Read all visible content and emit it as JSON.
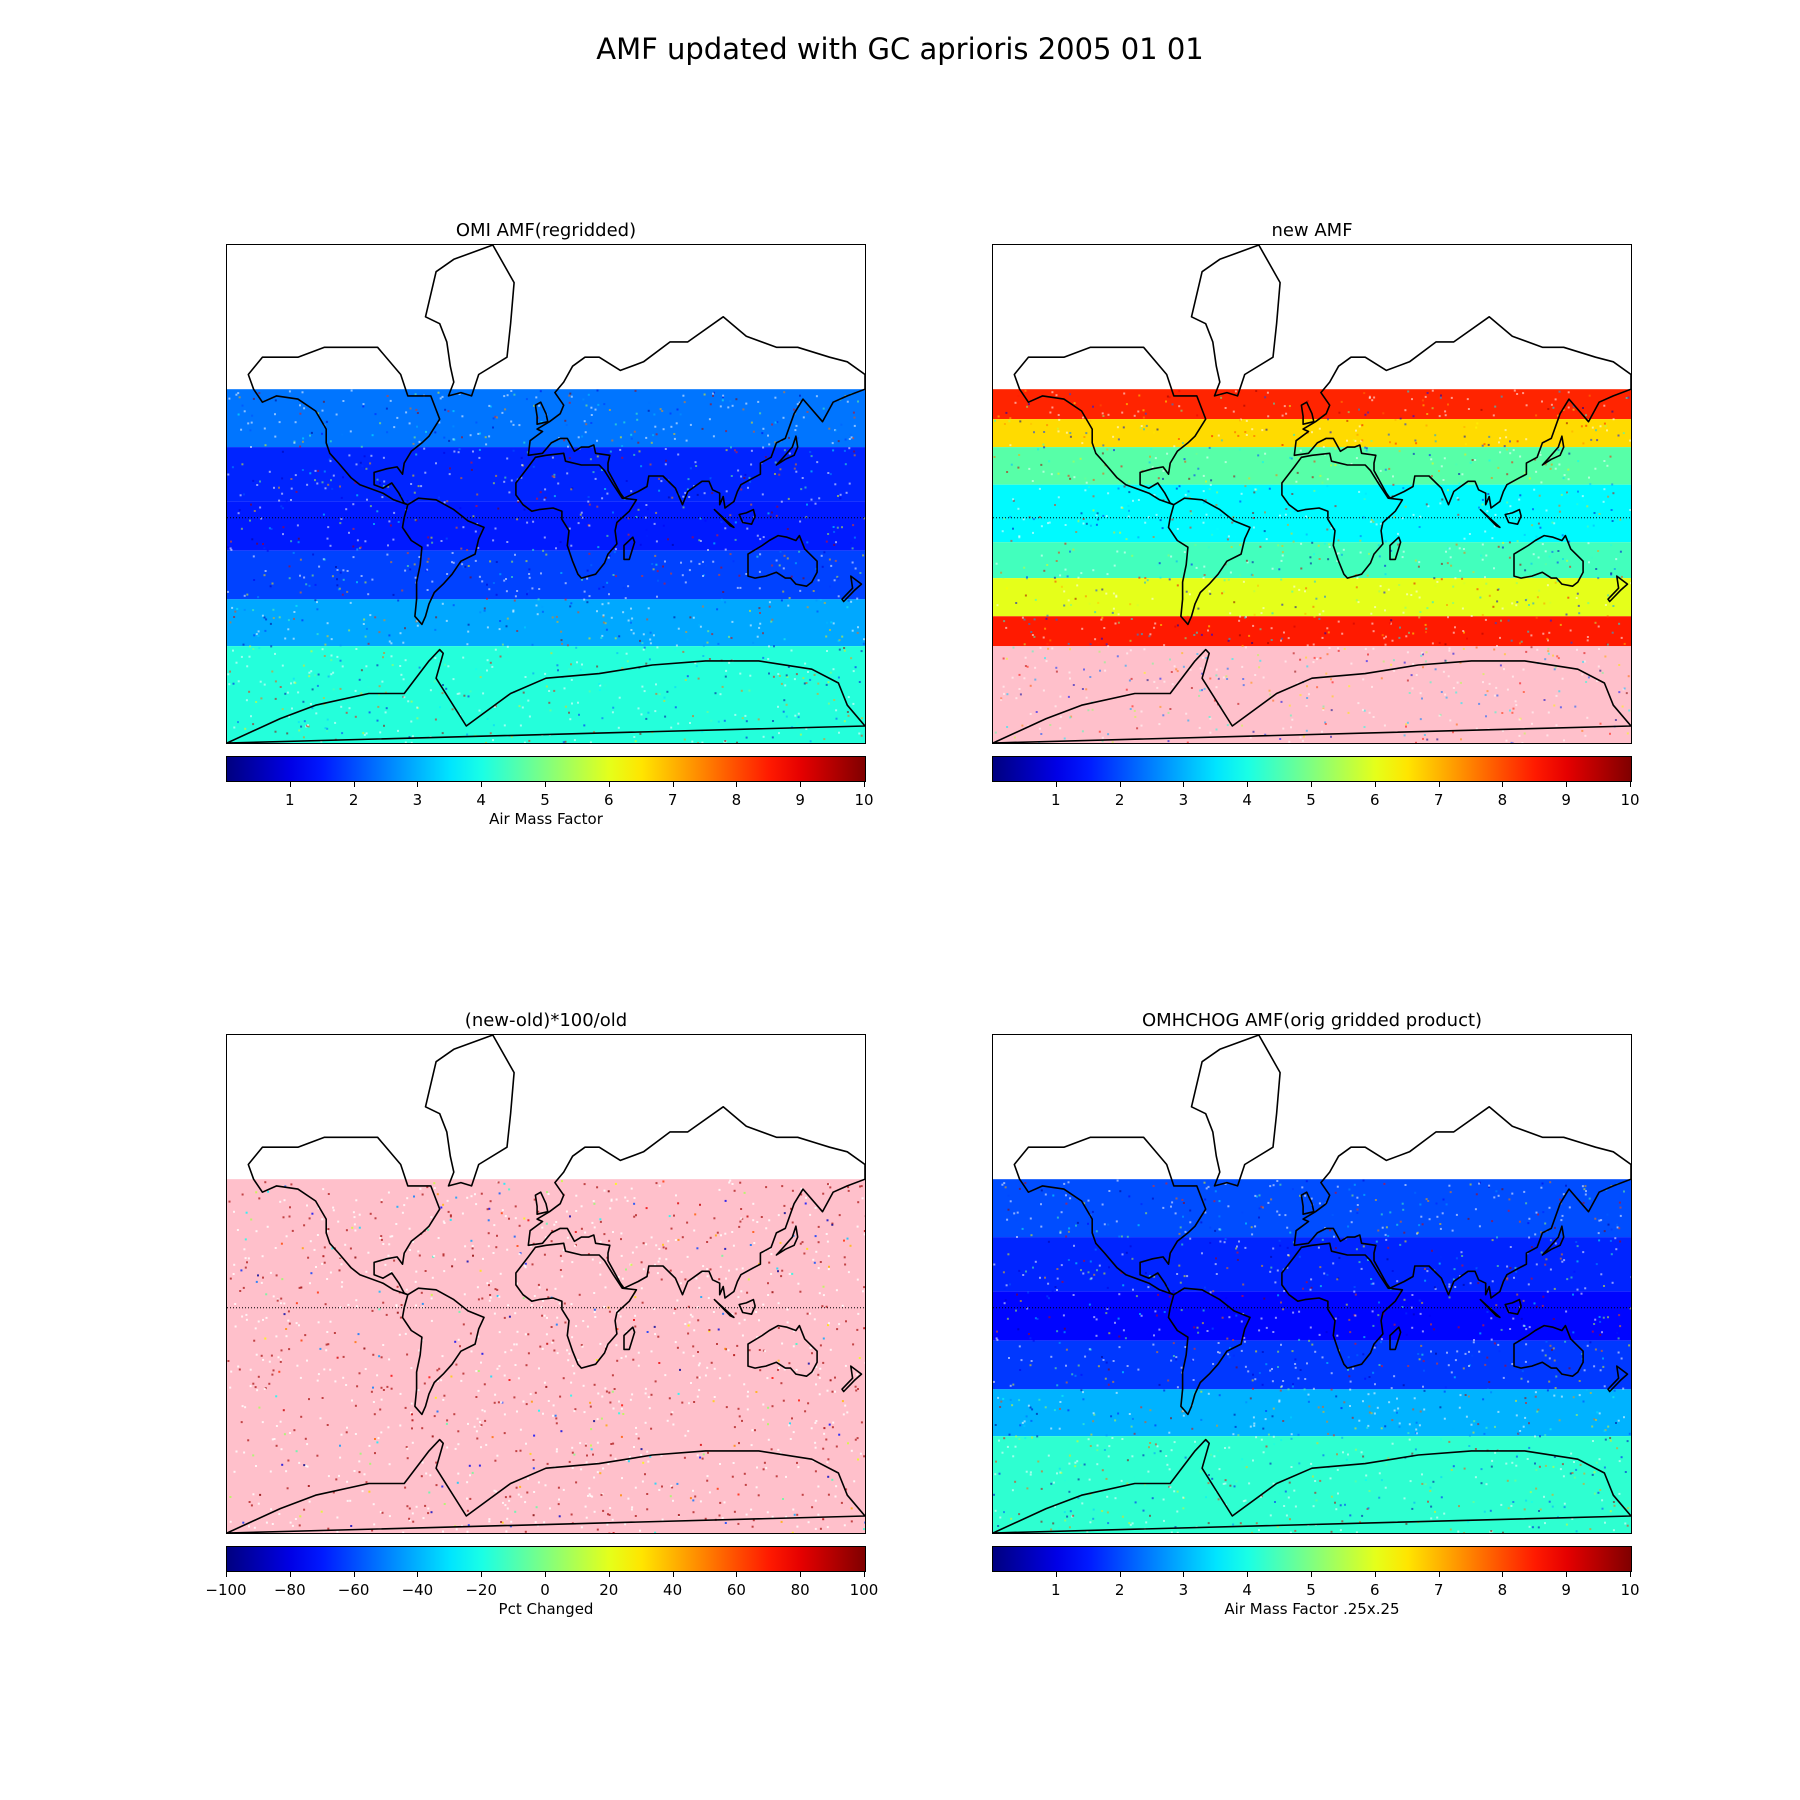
{
  "figure": {
    "title": "AMF updated with GC aprioris 2005 01 01"
  },
  "colors": {
    "no_data_fill": "#ffc0cb",
    "coastline": "#000000"
  },
  "chart_data": [
    {
      "type": "heatmap",
      "title": "OMI AMF(regridded)",
      "colorbar_label": "Air Mass Factor",
      "colormap": "jet",
      "range": [
        0,
        10
      ],
      "ticks": [
        "1",
        "2",
        "3",
        "4",
        "5",
        "6",
        "7",
        "8",
        "9",
        "10"
      ],
      "tick_values": [
        1,
        2,
        3,
        4,
        5,
        6,
        7,
        8,
        9,
        10
      ],
      "lat_bands": [
        {
          "lat": [
            62,
            90
          ],
          "value": null
        },
        {
          "lat": [
            40,
            62
          ],
          "value": 2.4
        },
        {
          "lat": [
            10,
            40
          ],
          "value": 1.6
        },
        {
          "lat": [
            -20,
            10
          ],
          "value": 1.5
        },
        {
          "lat": [
            -45,
            -20
          ],
          "value": 1.9
        },
        {
          "lat": [
            -62,
            -45
          ],
          "value": 2.9
        },
        {
          "lat": [
            -90,
            -62
          ],
          "value": 4.1
        }
      ]
    },
    {
      "type": "heatmap",
      "title": "new AMF",
      "colorbar_label": "",
      "colormap": "jet",
      "range": [
        0,
        10
      ],
      "ticks": [
        "1",
        "2",
        "3",
        "4",
        "5",
        "6",
        "7",
        "8",
        "9",
        "10"
      ],
      "tick_values": [
        1,
        2,
        3,
        4,
        5,
        6,
        7,
        8,
        9,
        10
      ],
      "lat_bands": [
        {
          "lat": [
            62,
            90
          ],
          "value": null
        },
        {
          "lat": [
            52,
            62
          ],
          "value": 8.4
        },
        {
          "lat": [
            40,
            52
          ],
          "value": 6.6
        },
        {
          "lat": [
            20,
            40
          ],
          "value": 4.6
        },
        {
          "lat": [
            -15,
            20
          ],
          "value": 3.7
        },
        {
          "lat": [
            -35,
            -15
          ],
          "value": 4.4
        },
        {
          "lat": [
            -52,
            -35
          ],
          "value": 6.0
        },
        {
          "lat": [
            -62,
            -52
          ],
          "value": 8.5
        },
        {
          "lat": [
            -90,
            -62
          ],
          "value": "fill"
        }
      ]
    },
    {
      "type": "heatmap",
      "title": "(new-old)*100/old",
      "colorbar_label": "Pct Changed",
      "colormap": "jet",
      "range": [
        -100,
        100
      ],
      "ticks": [
        "−100",
        "−80",
        "−60",
        "−40",
        "−20",
        "0",
        "20",
        "40",
        "60",
        "80",
        "100"
      ],
      "tick_values": [
        -100,
        -80,
        -60,
        -40,
        -20,
        0,
        20,
        40,
        60,
        80,
        100
      ],
      "lat_bands": [
        {
          "lat": [
            62,
            90
          ],
          "value": null
        },
        {
          "lat": [
            -90,
            62
          ],
          "value": "fill"
        }
      ]
    },
    {
      "type": "heatmap",
      "title": "OMHCHOG AMF(orig gridded product)",
      "colorbar_label": "Air Mass Factor .25x.25",
      "colormap": "jet",
      "range": [
        0,
        10
      ],
      "ticks": [
        "1",
        "2",
        "3",
        "4",
        "5",
        "6",
        "7",
        "8",
        "9",
        "10"
      ],
      "tick_values": [
        1,
        2,
        3,
        4,
        5,
        6,
        7,
        8,
        9,
        10
      ],
      "lat_bands": [
        {
          "lat": [
            62,
            90
          ],
          "value": null
        },
        {
          "lat": [
            40,
            62
          ],
          "value": 2.0
        },
        {
          "lat": [
            10,
            40
          ],
          "value": 1.6
        },
        {
          "lat": [
            -20,
            10
          ],
          "value": 1.3
        },
        {
          "lat": [
            -45,
            -20
          ],
          "value": 1.8
        },
        {
          "lat": [
            -62,
            -45
          ],
          "value": 3.0
        },
        {
          "lat": [
            -90,
            -62
          ],
          "value": 4.2
        }
      ]
    }
  ]
}
